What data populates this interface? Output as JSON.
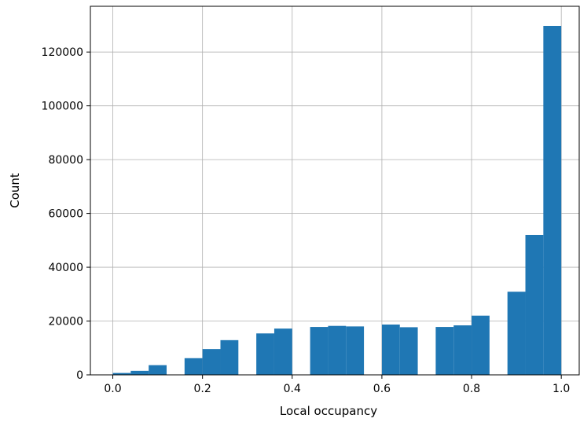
{
  "chart_data": {
    "type": "bar",
    "title": "",
    "xlabel": "Local occupancy",
    "ylabel": "Count",
    "xlim": [
      -0.05,
      1.04
    ],
    "ylim": [
      0,
      137000
    ],
    "xticks": [
      0.0,
      0.2,
      0.4,
      0.6,
      0.8,
      1.0
    ],
    "xtick_labels": [
      "0.0",
      "0.2",
      "0.4",
      "0.6",
      "0.8",
      "1.0"
    ],
    "yticks": [
      0,
      20000,
      40000,
      60000,
      80000,
      100000,
      120000
    ],
    "ytick_labels": [
      "0",
      "20000",
      "40000",
      "60000",
      "80000",
      "100000",
      "120000"
    ],
    "grid": true,
    "bar_color": "#1f77b4",
    "bin_width": 0.04,
    "bins": [
      {
        "x0": 0.0,
        "value": 700
      },
      {
        "x0": 0.04,
        "value": 1500
      },
      {
        "x0": 0.08,
        "value": 3600
      },
      {
        "x0": 0.16,
        "value": 6200
      },
      {
        "x0": 0.2,
        "value": 9600
      },
      {
        "x0": 0.24,
        "value": 12900
      },
      {
        "x0": 0.32,
        "value": 15400
      },
      {
        "x0": 0.36,
        "value": 17200
      },
      {
        "x0": 0.44,
        "value": 17800
      },
      {
        "x0": 0.48,
        "value": 18200
      },
      {
        "x0": 0.52,
        "value": 18000
      },
      {
        "x0": 0.6,
        "value": 18700
      },
      {
        "x0": 0.64,
        "value": 17700
      },
      {
        "x0": 0.72,
        "value": 17800
      },
      {
        "x0": 0.76,
        "value": 18400
      },
      {
        "x0": 0.8,
        "value": 22000
      },
      {
        "x0": 0.88,
        "value": 30900
      },
      {
        "x0": 0.92,
        "value": 52000
      },
      {
        "x0": 0.96,
        "value": 129700
      }
    ]
  }
}
